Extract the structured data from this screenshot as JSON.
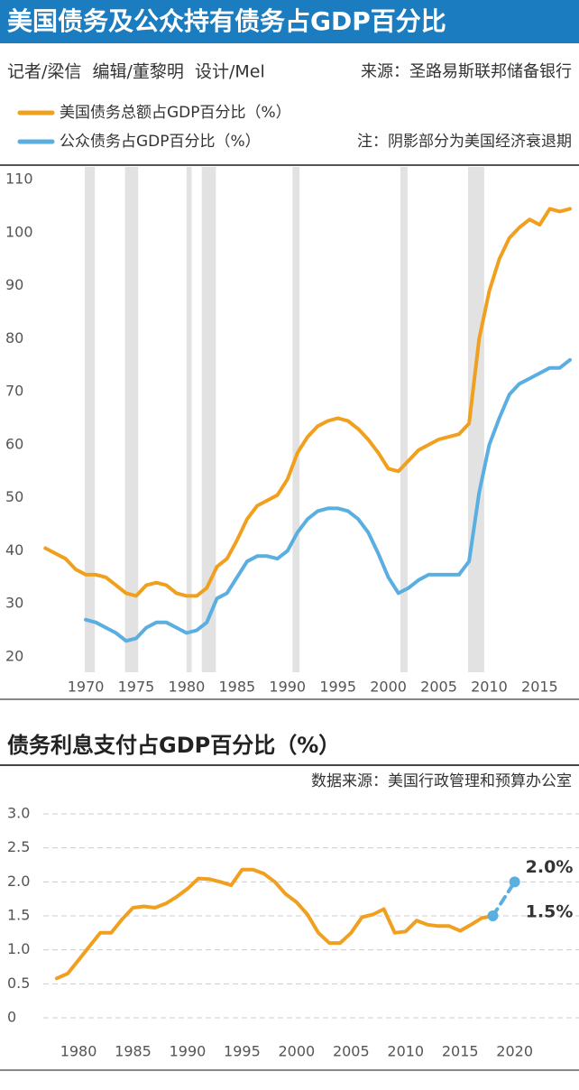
{
  "chart_data": [
    {
      "type": "line",
      "title": "美国债务及公众持有债务占GDP百分比",
      "credits": "记者/梁信  编辑/董黎明  设计/Mel",
      "source": "来源：圣路易斯联邦储备银行",
      "note": "注：阴影部分为美国经济衰退期",
      "x": [
        1966,
        1967,
        1968,
        1969,
        1970,
        1971,
        1972,
        1973,
        1974,
        1975,
        1976,
        1977,
        1978,
        1979,
        1980,
        1981,
        1982,
        1983,
        1984,
        1985,
        1986,
        1987,
        1988,
        1989,
        1990,
        1991,
        1992,
        1993,
        1994,
        1995,
        1996,
        1997,
        1998,
        1999,
        2000,
        2001,
        2002,
        2003,
        2004,
        2005,
        2006,
        2007,
        2008,
        2009,
        2010,
        2011,
        2012,
        2013,
        2014,
        2015,
        2016,
        2017,
        2018
      ],
      "series": [
        {
          "name": "美国债务总额占GDP百分比（%）",
          "color": "#f0a01e",
          "values": [
            40.5,
            39.5,
            38.5,
            36.5,
            35.5,
            35.5,
            35,
            33.5,
            32,
            31.5,
            33.5,
            34,
            33.5,
            32,
            31.5,
            31.5,
            33,
            37,
            38.5,
            42,
            46,
            48.5,
            49.5,
            50.5,
            53.5,
            58.5,
            61.5,
            63.5,
            64.5,
            65,
            64.5,
            63,
            61,
            58.5,
            55.5,
            55,
            57,
            59,
            60,
            61,
            61.5,
            62,
            64,
            80,
            89,
            95,
            99,
            101,
            102.5,
            101.5,
            104.5,
            104,
            104.5
          ]
        },
        {
          "name": "公众债务占GDP百分比（%）",
          "color": "#5aaee0",
          "values": [
            null,
            null,
            null,
            null,
            27,
            26.5,
            25.5,
            24.5,
            23,
            23.5,
            25.5,
            26.5,
            26.5,
            25.5,
            24.5,
            25,
            26.5,
            31,
            32,
            35,
            38,
            39,
            39,
            38.5,
            40,
            43.5,
            46,
            47.5,
            48,
            48,
            47.5,
            46,
            43.5,
            39.5,
            35,
            32,
            33,
            34.5,
            35.5,
            35.5,
            35.5,
            35.5,
            38,
            51,
            60,
            65,
            69.5,
            71.5,
            72.5,
            73.5,
            74.5,
            74.5,
            76
          ]
        }
      ],
      "recessions": [
        [
          1969.9,
          1970.9
        ],
        [
          1973.9,
          1975.2
        ],
        [
          1980.0,
          1980.5
        ],
        [
          1981.5,
          1982.9
        ],
        [
          1990.5,
          1991.2
        ],
        [
          2001.2,
          2001.9
        ],
        [
          2007.9,
          2009.5
        ]
      ],
      "xlim": [
        1961.5,
        2018.9
      ],
      "xticks": [
        1970,
        1975,
        1980,
        1985,
        1990,
        1995,
        2000,
        2005,
        2010,
        2015
      ],
      "ylim": [
        17.1,
        112.4
      ],
      "yticks": [
        20,
        30,
        40,
        50,
        60,
        70,
        80,
        90,
        100,
        110
      ],
      "grid": false
    },
    {
      "type": "line",
      "title": "债务利息支付占GDP百分比（%）",
      "source": "数据来源：美国行政管理和预算办公室",
      "series": [
        {
          "color": "#f0a01e",
          "x": [
            1978,
            1979,
            1980,
            1981,
            1982,
            1983,
            1984,
            1985,
            1986,
            1987,
            1988,
            1989,
            1990,
            1991,
            1992,
            1993,
            1994,
            1995,
            1996,
            1997,
            1998,
            1999,
            2000,
            2001,
            2002,
            2003,
            2004,
            2005,
            2006,
            2007,
            2008,
            2009,
            2010,
            2011,
            2012,
            2013,
            2014,
            2015,
            2016,
            2017,
            2018
          ],
          "values": [
            0.58,
            0.65,
            0.85,
            1.05,
            1.25,
            1.25,
            1.45,
            1.62,
            1.64,
            1.62,
            1.68,
            1.78,
            1.9,
            2.05,
            2.04,
            2.0,
            1.95,
            2.18,
            2.18,
            2.12,
            2.0,
            1.82,
            1.7,
            1.52,
            1.25,
            1.1,
            1.1,
            1.25,
            1.48,
            1.52,
            1.6,
            1.25,
            1.27,
            1.43,
            1.37,
            1.35,
            1.35,
            1.28,
            1.37,
            1.47,
            1.5
          ]
        },
        {
          "color": "#5aaee0",
          "dashed": true,
          "markers": true,
          "x": [
            2018,
            2020
          ],
          "values": [
            1.5,
            2.0
          ],
          "value_labels": [
            "1.5%",
            "2.0%"
          ]
        }
      ],
      "xlim": [
        1972.8,
        2025.9
      ],
      "xticks": [
        1980,
        1985,
        1990,
        1995,
        2000,
        2005,
        2010,
        2015,
        2020
      ],
      "ylim": [
        0,
        3
      ],
      "yticks": [
        0,
        0.5,
        {
          "value": 1,
          "label": "1.0"
        },
        1.5,
        {
          "value": 2,
          "label": "2.0"
        },
        2.5,
        {
          "value": 3,
          "label": "3.0"
        }
      ],
      "grid": true
    }
  ]
}
